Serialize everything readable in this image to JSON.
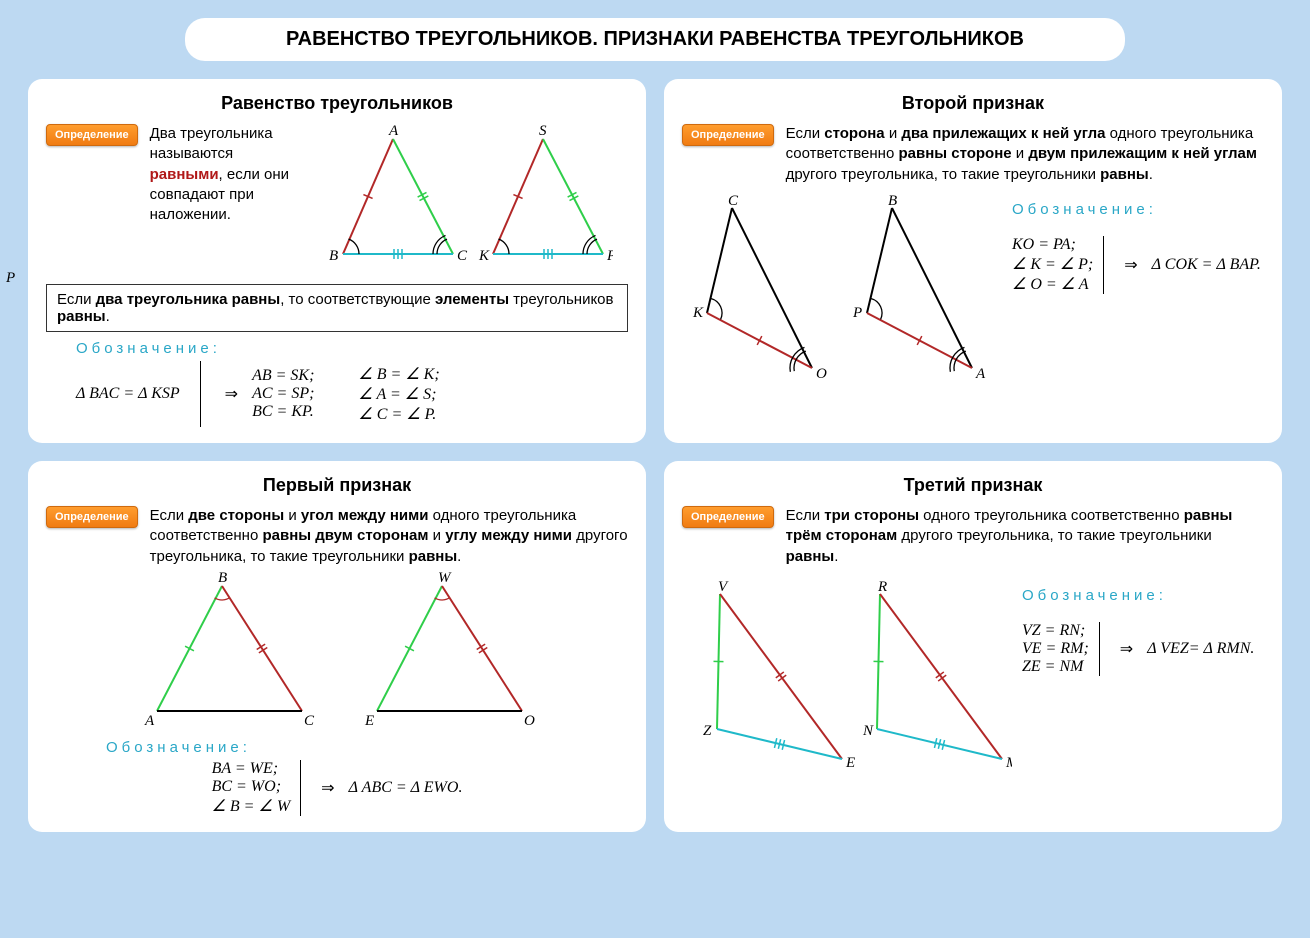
{
  "page": {
    "bg_color": "#bdd9f2",
    "panel_bg": "#ffffff",
    "title": "РАВЕНСТВО ТРЕУГОЛЬНИКОВ. ПРИЗНАКИ РАВЕНСТВА ТРЕУГОЛЬНИКОВ",
    "stray_label": "P"
  },
  "colors": {
    "red": "#b22828",
    "green": "#2fce4a",
    "cyan": "#1fb9c9",
    "black": "#000000",
    "badge_grad_top": "#ff9d2e",
    "badge_grad_bot": "#f07b12",
    "notation": "#2aa7c7",
    "highlight_text": "#b01818"
  },
  "badge_label": "Определение",
  "notation_label": "Обозначение:",
  "panels": {
    "equality": {
      "title": "Равенство треугольников",
      "definition_parts": [
        "Два треугольника называются ",
        "равными",
        ", если они совпадают при наложении."
      ],
      "box_html": "Если <b>два треугольника равны</b>, то соответствующие <b>элементы</b> треугольников <b>равны</b>.",
      "notation_left": "Δ BAC = Δ KSP",
      "eq_sides": [
        "AB = SK;",
        "AC = SP;",
        "BC = KP."
      ],
      "eq_angles": [
        "∠ B = ∠ K;",
        "∠ A = ∠ S;",
        "∠ C = ∠ P."
      ],
      "triangles": [
        {
          "labels": {
            "top": "A",
            "bl": "B",
            "br": "C"
          },
          "sides": [
            {
              "from": "top",
              "to": "bl",
              "color": "red",
              "ticks": 1
            },
            {
              "from": "top",
              "to": "br",
              "color": "green",
              "ticks": 2
            },
            {
              "from": "bl",
              "to": "br",
              "color": "cyan",
              "ticks": 3
            }
          ],
          "angle_arcs": [
            "bl",
            "br"
          ]
        },
        {
          "labels": {
            "top": "S",
            "bl": "K",
            "br": "P"
          },
          "sides": [
            {
              "from": "top",
              "to": "bl",
              "color": "red",
              "ticks": 1
            },
            {
              "from": "top",
              "to": "br",
              "color": "green",
              "ticks": 2
            },
            {
              "from": "bl",
              "to": "br",
              "color": "cyan",
              "ticks": 3
            }
          ],
          "angle_arcs": [
            "bl",
            "br"
          ]
        }
      ]
    },
    "criterion2": {
      "title": "Второй признак",
      "definition_html": "Если <b>сторона</b> и <b>два прилежащих к ней угла</b> одного треугольника соответственно <b>равны стороне</b> и <b>двум прилежащим к ней углам</b> другого треугольника, то такие треугольники <b>равны</b>.",
      "conds": [
        "KO = PA;",
        "∠ K = ∠ P;",
        "∠ O = ∠ A"
      ],
      "conclusion": "Δ COK = Δ BAP.",
      "triangles": [
        {
          "labels": {
            "top": "C",
            "bl": "K",
            "br": "O"
          },
          "base_color": "red",
          "angle_arcs": [
            "bl",
            "br"
          ],
          "base_ticks": 1
        },
        {
          "labels": {
            "top": "B",
            "bl": "P",
            "br": "A"
          },
          "base_color": "red",
          "angle_arcs": [
            "bl",
            "br"
          ],
          "base_ticks": 1
        }
      ]
    },
    "criterion1": {
      "title": "Первый признак",
      "definition_html": "Если <b>две стороны</b> и <b>угол между ними</b> одного треугольника соответственно <b>равны двум сторонам</b> и <b>углу между ними</b> другого треугольника, то такие треугольники <b>равны</b>.",
      "conds": [
        "BA = WE;",
        "BC = WO;",
        "∠ B = ∠ W"
      ],
      "conclusion": "Δ ABC = Δ EWO.",
      "triangles": [
        {
          "labels": {
            "top": "B",
            "bl": "A",
            "br": "C"
          },
          "left_color": "green",
          "right_color": "red",
          "apex_arc": true,
          "left_ticks": 1,
          "right_ticks": 2
        },
        {
          "labels": {
            "top": "W",
            "bl": "E",
            "br": "O"
          },
          "left_color": "green",
          "right_color": "red",
          "apex_arc": true,
          "left_ticks": 1,
          "right_ticks": 2
        }
      ]
    },
    "criterion3": {
      "title": "Третий признак",
      "definition_html": "Если <b>три стороны</b> одного треугольника соответственно <b>равны трём сторонам</b> другого треугольника, то такие треугольники <b>равны</b>.",
      "conds": [
        "VZ = RN;",
        "VE = RM;",
        "ZE = NM"
      ],
      "conclusion": "Δ VEZ= Δ RMN.",
      "triangles": [
        {
          "labels": {
            "top": "V",
            "bl": "Z",
            "br": "E"
          },
          "left_color": "green",
          "hyp_color": "red",
          "base_color": "cyan",
          "left_ticks": 1,
          "hyp_ticks": 2,
          "base_ticks": 3
        },
        {
          "labels": {
            "top": "R",
            "bl": "N",
            "br": "M"
          },
          "left_color": "green",
          "hyp_color": "red",
          "base_color": "cyan",
          "left_ticks": 1,
          "hyp_ticks": 2,
          "base_ticks": 3
        }
      ]
    }
  }
}
